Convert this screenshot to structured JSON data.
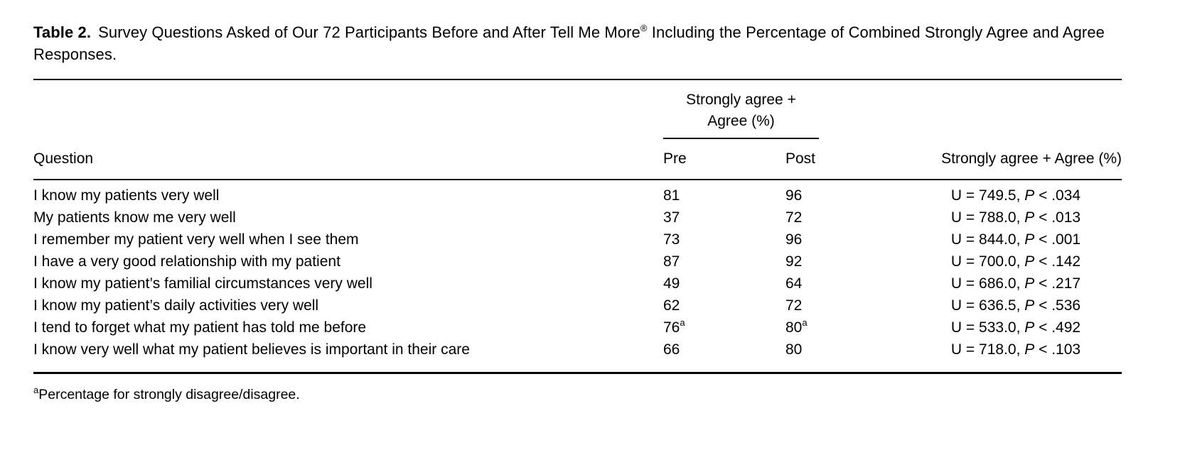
{
  "colors": {
    "text": "#000000",
    "background": "#ffffff",
    "rule": "#000000"
  },
  "caption": {
    "label": "Table 2.",
    "text_main": "Survey Questions Asked of Our 72 Participants Before and After Tell Me More",
    "registered": "®",
    "text_tail": " Including the Percentage of Combined Strongly Agree and Agree Responses."
  },
  "table": {
    "spanner_line1": "Strongly agree +",
    "spanner_line2": "Agree (%)",
    "headers": {
      "question": "Question",
      "pre": "Pre",
      "post": "Post",
      "stats": "Strongly agree + Agree (%)"
    },
    "rows": [
      {
        "question": "I know my patients very well",
        "pre": "81",
        "pre_sup": "",
        "post": "96",
        "post_sup": "",
        "stat_u": "U = 749.5, ",
        "stat_p": "P",
        "stat_tail": " < .034"
      },
      {
        "question": "My patients know me very well",
        "pre": "37",
        "pre_sup": "",
        "post": "72",
        "post_sup": "",
        "stat_u": "U = 788.0, ",
        "stat_p": "P",
        "stat_tail": " < .013"
      },
      {
        "question": "I remember my patient very well when I see them",
        "pre": "73",
        "pre_sup": "",
        "post": "96",
        "post_sup": "",
        "stat_u": "U = 844.0, ",
        "stat_p": "P",
        "stat_tail": " < .001"
      },
      {
        "question": "I have a very good relationship with my patient",
        "pre": "87",
        "pre_sup": "",
        "post": "92",
        "post_sup": "",
        "stat_u": "U = 700.0, ",
        "stat_p": "P",
        "stat_tail": " < .142"
      },
      {
        "question": "I know my patient’s familial circumstances very well",
        "pre": "49",
        "pre_sup": "",
        "post": "64",
        "post_sup": "",
        "stat_u": "U = 686.0, ",
        "stat_p": "P",
        "stat_tail": " < .217"
      },
      {
        "question": "I know my patient’s daily activities very well",
        "pre": "62",
        "pre_sup": "",
        "post": "72",
        "post_sup": "",
        "stat_u": "U = 636.5, ",
        "stat_p": "P",
        "stat_tail": " < .536"
      },
      {
        "question": "I tend to forget what my patient has told me before",
        "pre": "76",
        "pre_sup": "a",
        "post": "80",
        "post_sup": "a",
        "stat_u": "U = 533.0, ",
        "stat_p": "P",
        "stat_tail": " < .492"
      },
      {
        "question": "I know very well what my patient believes is important in their care",
        "pre": "66",
        "pre_sup": "",
        "post": "80",
        "post_sup": "",
        "stat_u": "U = 718.0, ",
        "stat_p": "P",
        "stat_tail": " < .103"
      }
    ]
  },
  "footnote": {
    "marker": "a",
    "text": "Percentage for strongly disagree/disagree."
  }
}
